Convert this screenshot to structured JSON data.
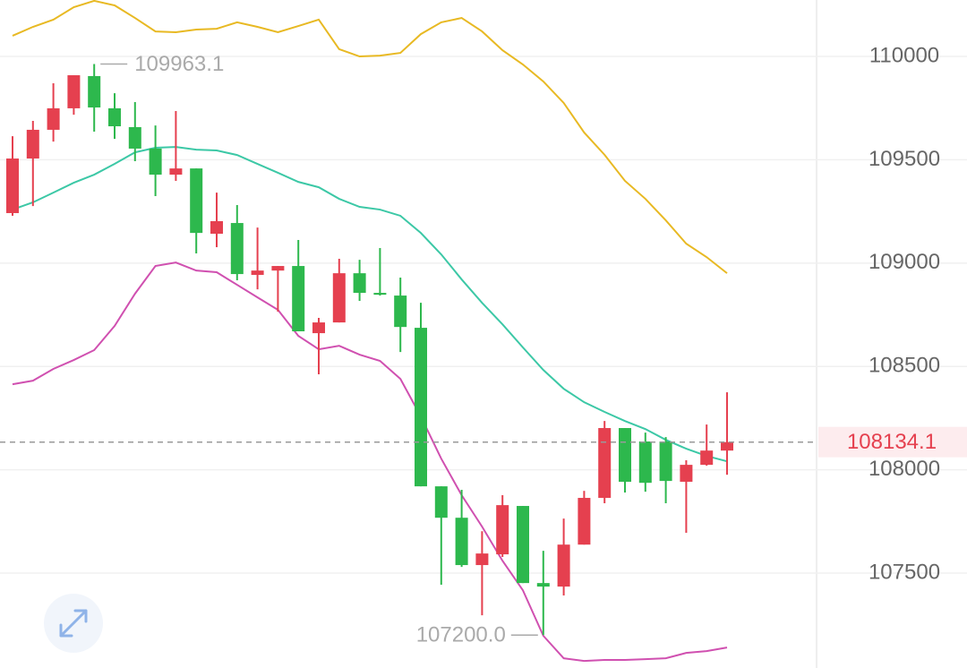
{
  "chart_data": {
    "type": "candlestick",
    "open": [
      109242,
      109506,
      109645,
      109749,
      109905,
      109749,
      109658,
      109554,
      109428,
      109458,
      109142,
      109194,
      108943,
      108964,
      108986,
      108661,
      108713,
      108951,
      108856,
      108843,
      108687,
      107920,
      107768,
      107539,
      107591,
      107825,
      107452,
      107435,
      107638,
      107864,
      108202,
      108137,
      108137,
      107942,
      108024,
      108093
    ],
    "high": [
      109614,
      109688,
      109870,
      109909,
      109963.1,
      109822,
      109779,
      109666,
      109736,
      109458,
      109341,
      109281,
      109172,
      108986,
      109112,
      108735,
      109021,
      109016,
      109073,
      108930,
      108808,
      107920,
      107903,
      107703,
      107877,
      107825,
      107608,
      107764,
      107898,
      108236,
      108202,
      108180,
      108158,
      108046,
      108219,
      108375
    ],
    "low": [
      109229,
      109276,
      109588,
      109718,
      109636,
      109601,
      109493,
      109324,
      109398,
      109047,
      109077,
      108917,
      108873,
      108765,
      108670,
      108462,
      108713,
      108817,
      108843,
      108570,
      107920,
      107444,
      107530,
      107296,
      107578,
      107452,
      107200,
      107392,
      107638,
      107838,
      107890,
      107894,
      107838,
      107695,
      108020,
      107976
    ],
    "close": [
      109506,
      109645,
      109749,
      109909,
      109753,
      109662,
      109554,
      109428,
      109458,
      109146,
      109203,
      108947,
      108964,
      108986,
      108670,
      108713,
      108951,
      108856,
      108847,
      108691,
      107920,
      107768,
      107539,
      107595,
      107829,
      107452,
      107435,
      107638,
      107864,
      108202,
      107942,
      107937,
      107946,
      108024,
      108093,
      108134.1
    ],
    "up_color": "#e5404f",
    "down_color": "#2db84d",
    "series": [
      {
        "color": "#e8b923",
        "values": [
          110100,
          110143,
          110178,
          110238,
          110269,
          110247,
          110186,
          110121,
          110117,
          110130,
          110134,
          110165,
          110143,
          110117,
          110147,
          110178,
          110035,
          110000,
          110004,
          110017,
          110108,
          110165,
          110186,
          110121,
          110030,
          109961,
          109879,
          109775,
          109632,
          109524,
          109398,
          109311,
          109207,
          109094,
          109029,
          108951
        ]
      },
      {
        "color": "#3cc8a6",
        "values": [
          109259,
          109294,
          109341,
          109389,
          109428,
          109480,
          109536,
          109558,
          109562,
          109549,
          109545,
          109523,
          109480,
          109437,
          109393,
          109367,
          109311,
          109272,
          109259,
          109229,
          109146,
          109042,
          108921,
          108808,
          108704,
          108592,
          108483,
          108392,
          108327,
          108280,
          108236,
          108197,
          108145,
          108102,
          108067,
          108041
        ]
      },
      {
        "color": "#d050b0",
        "values": [
          108414,
          108431,
          108488,
          108531,
          108579,
          108696,
          108852,
          108986,
          109003,
          108964,
          108956,
          108895,
          108834,
          108774,
          108648,
          108583,
          108600,
          108557,
          108527,
          108440,
          108258,
          108054,
          107877,
          107725,
          107560,
          107417,
          107197,
          107088,
          107075,
          107080,
          107080,
          107084,
          107088,
          107114,
          107123,
          107140
        ]
      }
    ],
    "ylim": [
      107041,
      110273
    ],
    "yticks": [
      107500,
      108000,
      108500,
      109000,
      109500,
      110000
    ],
    "grid": true,
    "max_label": 109963.1,
    "min_label": {
      "value": 107200,
      "label": "107200.0"
    },
    "last_price": 108134.1
  }
}
